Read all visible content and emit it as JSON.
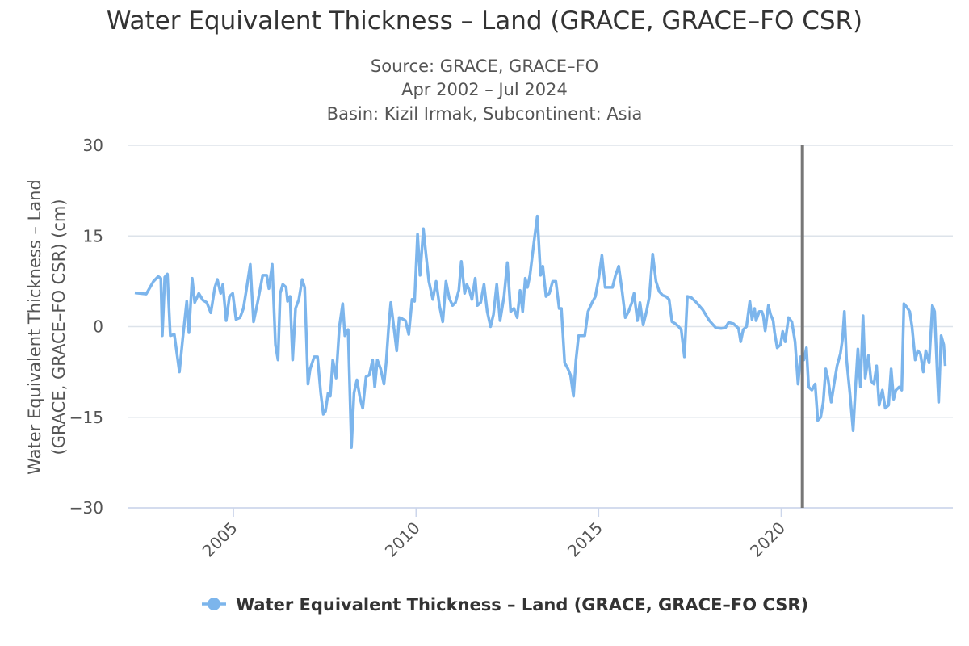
{
  "chart_data": {
    "type": "line",
    "title": "Water Equivalent Thickness – Land (GRACE, GRACE–FO CSR)",
    "subtitle": [
      "Source: GRACE, GRACE–FO",
      "Apr 2002 – Jul 2024",
      "Basin: Kizil Irmak, Subcontinent: Asia"
    ],
    "y_label": [
      "Water Equivalent Thickness – Land",
      "(GRACE, GRACE–FO CSR) (cm)"
    ],
    "xlim": [
      2002.1,
      2024.7
    ],
    "xticks": [
      2005,
      2010,
      2015,
      2020
    ],
    "ylim": [
      -30,
      30
    ],
    "yticks": [
      {
        "value": -30,
        "label": "−30"
      },
      {
        "value": -15,
        "label": "−15"
      },
      0,
      15,
      30
    ],
    "grid": true,
    "legend": "bottom",
    "plot_line_x": 2020.58,
    "plot_line_color": "#777777",
    "x": [
      2002.3,
      2002.61,
      2002.81,
      2002.94,
      2003.01,
      2003.05,
      2003.12,
      2003.19,
      2003.27,
      2003.38,
      2003.52,
      2003.61,
      2003.72,
      2003.78,
      2003.87,
      2003.94,
      2004.05,
      2004.16,
      2004.27,
      2004.38,
      2004.49,
      2004.56,
      2004.65,
      2004.71,
      2004.8,
      2004.89,
      2004.98,
      2005.07,
      2005.18,
      2005.27,
      2005.35,
      2005.46,
      2005.55,
      2005.66,
      2005.8,
      2005.91,
      2005.97,
      2006.06,
      2006.15,
      2006.22,
      2006.28,
      2006.35,
      2006.44,
      2006.48,
      2006.55,
      2006.62,
      2006.7,
      2006.79,
      2006.88,
      2006.95,
      2007.04,
      2007.1,
      2007.21,
      2007.3,
      2007.39,
      2007.46,
      2007.52,
      2007.59,
      2007.65,
      2007.72,
      2007.81,
      2007.9,
      2007.99,
      2008.05,
      2008.14,
      2008.23,
      2008.3,
      2008.38,
      2008.47,
      2008.54,
      2008.63,
      2008.72,
      2008.81,
      2008.87,
      2008.94,
      2009.03,
      2009.12,
      2009.18,
      2009.25,
      2009.31,
      2009.38,
      2009.47,
      2009.54,
      2009.62,
      2009.71,
      2009.8,
      2009.89,
      2009.96,
      2010.04,
      2010.11,
      2010.2,
      2010.27,
      2010.35,
      2010.46,
      2010.55,
      2010.64,
      2010.73,
      2010.82,
      2010.91,
      2011.0,
      2011.08,
      2011.17,
      2011.24,
      2011.33,
      2011.39,
      2011.46,
      2011.53,
      2011.62,
      2011.68,
      2011.77,
      2011.86,
      2011.95,
      2012.04,
      2012.12,
      2012.21,
      2012.3,
      2012.41,
      2012.5,
      2012.59,
      2012.68,
      2012.77,
      2012.85,
      2012.92,
      2012.99,
      2013.05,
      2013.12,
      2013.23,
      2013.32,
      2013.41,
      2013.47,
      2013.56,
      2013.65,
      2013.74,
      2013.83,
      2013.92,
      2013.98,
      2014.07,
      2014.16,
      2014.23,
      2014.31,
      2014.38,
      2014.45,
      2014.54,
      2014.62,
      2014.71,
      2014.82,
      2014.91,
      2015.0,
      2015.09,
      2015.18,
      2015.29,
      2015.38,
      2015.46,
      2015.55,
      2015.64,
      2015.73,
      2015.82,
      2015.91,
      2015.97,
      2016.06,
      2016.13,
      2016.22,
      2016.31,
      2016.39,
      2016.48,
      2016.57,
      2016.66,
      2016.75,
      2016.84,
      2016.93,
      2017.01,
      2017.1,
      2017.19,
      2017.26,
      2017.35,
      2017.43,
      2017.54,
      2017.68,
      2017.85,
      2018.03,
      2018.21,
      2018.36,
      2018.47,
      2018.56,
      2018.69,
      2018.83,
      2018.89,
      2018.96,
      2019.05,
      2019.14,
      2019.2,
      2019.27,
      2019.31,
      2019.4,
      2019.47,
      2019.51,
      2019.56,
      2019.65,
      2019.71,
      2019.78,
      2019.82,
      2019.89,
      2019.98,
      2020.04,
      2020.11,
      2020.2,
      2020.29,
      2020.38,
      2020.46,
      2020.53,
      2020.62,
      2020.69,
      2020.75,
      2020.84,
      2020.93,
      2021.0,
      2021.08,
      2021.15,
      2021.22,
      2021.28,
      2021.37,
      2021.46,
      2021.53,
      2021.62,
      2021.68,
      2021.73,
      2021.79,
      2021.88,
      2021.97,
      2022.04,
      2022.1,
      2022.17,
      2022.24,
      2022.3,
      2022.39,
      2022.46,
      2022.54,
      2022.61,
      2022.68,
      2022.77,
      2022.85,
      2022.94,
      2023.01,
      2023.08,
      2023.14,
      2023.23,
      2023.3,
      2023.36,
      2023.43,
      2023.52,
      2023.58,
      2023.67,
      2023.74,
      2023.81,
      2023.89,
      2023.96,
      2024.05,
      2024.14,
      2024.2,
      2024.27,
      2024.31,
      2024.38,
      2024.45,
      2024.49
    ],
    "series": [
      {
        "name": "Water Equivalent Thickness – Land (GRACE, GRACE–FO CSR)",
        "color": "#7cb5ec",
        "values": [
          5.6,
          5.4,
          7.5,
          8.3,
          8.0,
          -1.5,
          8.2,
          8.7,
          -1.5,
          -1.3,
          -7.5,
          -2,
          4.2,
          -1,
          8,
          4,
          5.5,
          4.4,
          4,
          2.3,
          6.5,
          7.8,
          5.5,
          7,
          1,
          5,
          5.5,
          1.2,
          1.5,
          3,
          6,
          10.3,
          0.8,
          4,
          8.5,
          8.5,
          6.3,
          10.3,
          -3,
          -5.5,
          5.5,
          7,
          6.5,
          4.2,
          5,
          -5.5,
          3,
          4.5,
          7.8,
          6.5,
          -9.5,
          -7,
          -5,
          -5,
          -11,
          -14.5,
          -14,
          -11,
          -11.5,
          -5.5,
          -8.5,
          0,
          3.8,
          -1.5,
          -0.5,
          -20,
          -11,
          -8.8,
          -12,
          -13.5,
          -8.3,
          -8,
          -5.5,
          -10,
          -5.5,
          -7,
          -9.5,
          -6,
          0,
          4,
          0.5,
          -4,
          1.5,
          1.3,
          1,
          -1.3,
          4.5,
          4.2,
          15.3,
          8.5,
          16.2,
          12,
          7.5,
          4.5,
          7.5,
          3.5,
          0.8,
          7.5,
          4.7,
          3.5,
          4,
          6,
          10.8,
          5.5,
          7,
          6,
          4.5,
          8,
          3.5,
          4,
          7,
          2.5,
          0,
          2,
          7,
          1,
          5,
          10.6,
          2.5,
          3,
          1.5,
          6,
          2.5,
          8,
          6.5,
          8.5,
          14,
          18.3,
          8.5,
          10,
          5,
          5.5,
          7.5,
          7.5,
          3,
          3,
          -6,
          -7,
          -8,
          -11.5,
          -5.5,
          -1.5,
          -1.5,
          -1.5,
          2.5,
          4,
          5,
          8,
          11.8,
          6.5,
          6.5,
          6.5,
          8.5,
          10,
          6,
          1.5,
          2.5,
          4,
          5.5,
          1,
          4,
          0.3,
          2.5,
          5,
          12,
          7.5,
          5.8,
          5.2,
          5,
          4.5,
          0.8,
          0.5,
          0,
          -0.5,
          -5,
          5,
          4.8,
          4,
          2.8,
          1,
          -0.2,
          -0.3,
          -0.2,
          0.7,
          0.5,
          -0.3,
          -2.5,
          -0.5,
          0,
          4.2,
          1.2,
          3,
          1,
          2.5,
          2.5,
          1.8,
          -0.7,
          3.5,
          2,
          1,
          -1,
          -3.5,
          -3,
          -0.8,
          -2.5,
          1.5,
          0.8,
          -2.5,
          -9.5,
          -5,
          -5.5,
          -3.5,
          -10,
          -10.5,
          -9.5,
          -15.5,
          -15,
          -12.5,
          -7,
          -8.5,
          -12.5,
          -9,
          -6.5,
          -4.5,
          -2,
          2.5,
          -5.5,
          -11,
          -17.2,
          -9.5,
          -3.7,
          -10,
          1.8,
          -8.5,
          -4.8,
          -9,
          -9.5,
          -6.5,
          -13,
          -10.5,
          -13.5,
          -13,
          -7,
          -12,
          -10.5,
          -10,
          -10.5,
          3.8,
          3.3,
          2.5,
          0,
          -5.5,
          -4,
          -4.5,
          -7.5,
          -4,
          -6,
          3.5,
          2.5,
          -7.5,
          -12.5,
          -1.5,
          -3,
          -6.5
        ]
      }
    ]
  }
}
